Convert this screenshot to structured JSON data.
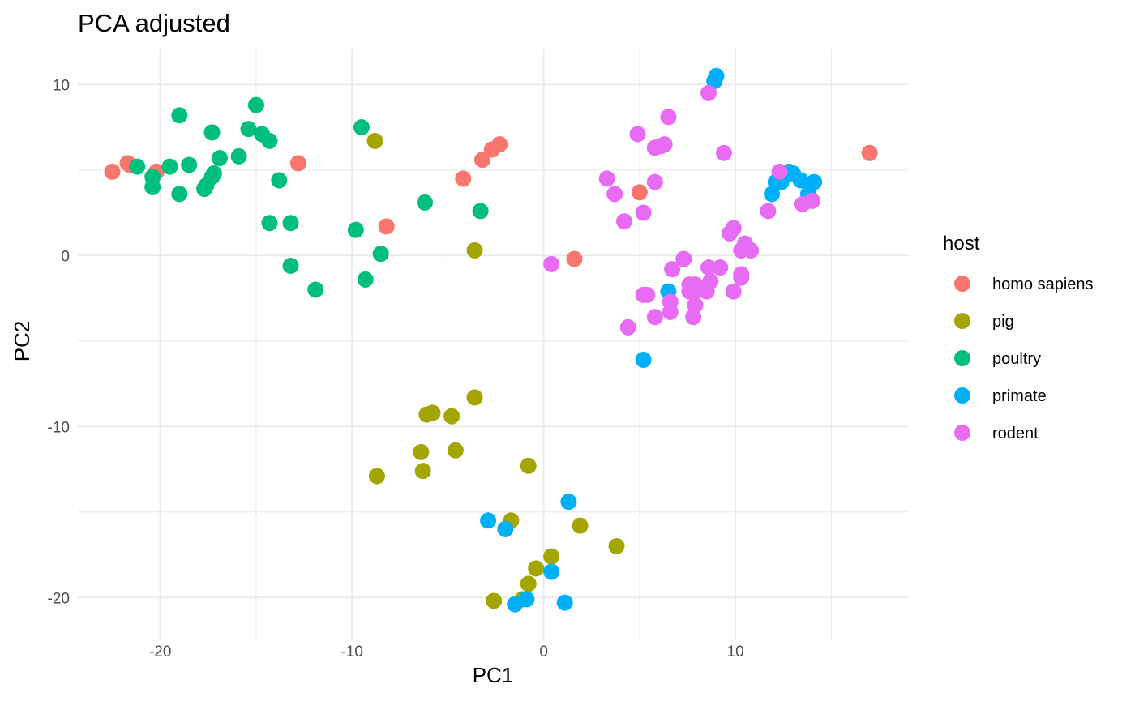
{
  "chart_data": {
    "type": "scatter",
    "title": "PCA adjusted",
    "xlabel": "PC1",
    "ylabel": "PC2",
    "xlim": [
      -24.3,
      19.0
    ],
    "ylim": [
      -22.5,
      12.1
    ],
    "x_ticks": [
      -20,
      -10,
      0,
      10
    ],
    "y_ticks": [
      -20,
      -10,
      0,
      10
    ],
    "x_tick_labels": [
      "-20",
      "-10",
      "0",
      "10"
    ],
    "y_tick_labels": [
      "-20",
      "-10",
      "0",
      "10"
    ],
    "grid": true,
    "legend": {
      "title": "host",
      "position": "right"
    },
    "series": [
      {
        "name": "homo sapiens",
        "color": "#F8766D",
        "points": [
          [
            -22.5,
            4.9
          ],
          [
            -21.7,
            5.4
          ],
          [
            -21.6,
            5.3
          ],
          [
            -20.2,
            4.9
          ],
          [
            -12.8,
            5.4
          ],
          [
            -8.2,
            1.7
          ],
          [
            -4.2,
            4.5
          ],
          [
            -3.2,
            5.6
          ],
          [
            -2.7,
            6.2
          ],
          [
            -2.3,
            6.5
          ],
          [
            1.6,
            -0.2
          ],
          [
            5.0,
            3.7
          ],
          [
            17.0,
            6.0
          ]
        ]
      },
      {
        "name": "pig",
        "color": "#A3A500",
        "points": [
          [
            -8.8,
            6.7
          ],
          [
            -3.6,
            0.3
          ],
          [
            -3.6,
            -8.3
          ],
          [
            -6.1,
            -9.3
          ],
          [
            -5.8,
            -9.2
          ],
          [
            -4.8,
            -9.4
          ],
          [
            -6.4,
            -11.5
          ],
          [
            -4.6,
            -11.4
          ],
          [
            -6.3,
            -12.6
          ],
          [
            -8.7,
            -12.9
          ],
          [
            -0.8,
            -12.3
          ],
          [
            -1.7,
            -15.5
          ],
          [
            1.9,
            -15.8
          ],
          [
            3.8,
            -17.0
          ],
          [
            0.4,
            -17.6
          ],
          [
            -0.4,
            -18.3
          ],
          [
            -0.8,
            -19.2
          ],
          [
            -1.1,
            -20.1
          ],
          [
            -2.6,
            -20.2
          ]
        ]
      },
      {
        "name": "poultry",
        "color": "#00BF7D",
        "points": [
          [
            -21.2,
            5.2
          ],
          [
            -20.4,
            4.6
          ],
          [
            -20.4,
            4.0
          ],
          [
            -19.5,
            5.2
          ],
          [
            -19.0,
            8.2
          ],
          [
            -19.0,
            3.6
          ],
          [
            -18.5,
            5.3
          ],
          [
            -17.7,
            3.9
          ],
          [
            -17.6,
            4.1
          ],
          [
            -17.3,
            7.2
          ],
          [
            -17.3,
            4.6
          ],
          [
            -17.2,
            4.8
          ],
          [
            -16.9,
            5.7
          ],
          [
            -15.9,
            5.8
          ],
          [
            -15.4,
            7.4
          ],
          [
            -15.0,
            8.8
          ],
          [
            -14.7,
            7.1
          ],
          [
            -14.3,
            6.7
          ],
          [
            -14.3,
            1.9
          ],
          [
            -13.8,
            4.4
          ],
          [
            -13.2,
            -0.6
          ],
          [
            -13.2,
            1.9
          ],
          [
            -11.9,
            -2.0
          ],
          [
            -9.8,
            1.5
          ],
          [
            -9.5,
            7.5
          ],
          [
            -9.3,
            -1.4
          ],
          [
            -8.5,
            0.1
          ],
          [
            -6.2,
            3.1
          ],
          [
            -3.3,
            2.6
          ],
          [
            14.0,
            3.2
          ]
        ]
      },
      {
        "name": "primate",
        "color": "#00B0F6",
        "points": [
          [
            9.0,
            10.5
          ],
          [
            8.9,
            10.2
          ],
          [
            11.9,
            3.6
          ],
          [
            12.1,
            4.3
          ],
          [
            12.4,
            4.3
          ],
          [
            12.8,
            4.9
          ],
          [
            13.0,
            4.8
          ],
          [
            13.4,
            4.4
          ],
          [
            13.8,
            3.6
          ],
          [
            14.1,
            4.3
          ],
          [
            6.5,
            -2.1
          ],
          [
            5.2,
            -6.1
          ],
          [
            -2.9,
            -15.5
          ],
          [
            -2.0,
            -16.0
          ],
          [
            1.3,
            -14.4
          ],
          [
            0.4,
            -18.5
          ],
          [
            -0.9,
            -20.1
          ],
          [
            -1.5,
            -20.4
          ],
          [
            1.1,
            -20.3
          ]
        ]
      },
      {
        "name": "rodent",
        "color": "#E76BF3",
        "points": [
          [
            8.6,
            9.5
          ],
          [
            6.5,
            8.1
          ],
          [
            4.9,
            7.1
          ],
          [
            5.8,
            6.3
          ],
          [
            6.1,
            6.4
          ],
          [
            6.3,
            6.5
          ],
          [
            9.4,
            6.0
          ],
          [
            3.3,
            4.5
          ],
          [
            3.7,
            3.6
          ],
          [
            5.8,
            4.3
          ],
          [
            5.2,
            2.5
          ],
          [
            4.2,
            2.0
          ],
          [
            12.3,
            4.9
          ],
          [
            11.7,
            2.6
          ],
          [
            13.5,
            3.0
          ],
          [
            14.0,
            3.2
          ],
          [
            9.9,
            1.6
          ],
          [
            9.7,
            1.3
          ],
          [
            10.5,
            0.7
          ],
          [
            10.3,
            0.3
          ],
          [
            10.8,
            0.3
          ],
          [
            0.4,
            -0.5
          ],
          [
            7.3,
            -0.2
          ],
          [
            6.7,
            -0.8
          ],
          [
            8.6,
            -0.7
          ],
          [
            9.2,
            -0.7
          ],
          [
            10.3,
            -1.1
          ],
          [
            10.3,
            -1.3
          ],
          [
            7.6,
            -1.7
          ],
          [
            7.9,
            -1.7
          ],
          [
            8.7,
            -1.5
          ],
          [
            9.9,
            -2.1
          ],
          [
            5.2,
            -2.3
          ],
          [
            5.4,
            -2.3
          ],
          [
            6.6,
            -2.7
          ],
          [
            6.6,
            -3.3
          ],
          [
            7.6,
            -2.1
          ],
          [
            8.1,
            -2.0
          ],
          [
            8.5,
            -2.1
          ],
          [
            7.9,
            -2.9
          ],
          [
            5.8,
            -3.6
          ],
          [
            7.8,
            -3.6
          ],
          [
            4.4,
            -4.2
          ]
        ]
      }
    ]
  }
}
